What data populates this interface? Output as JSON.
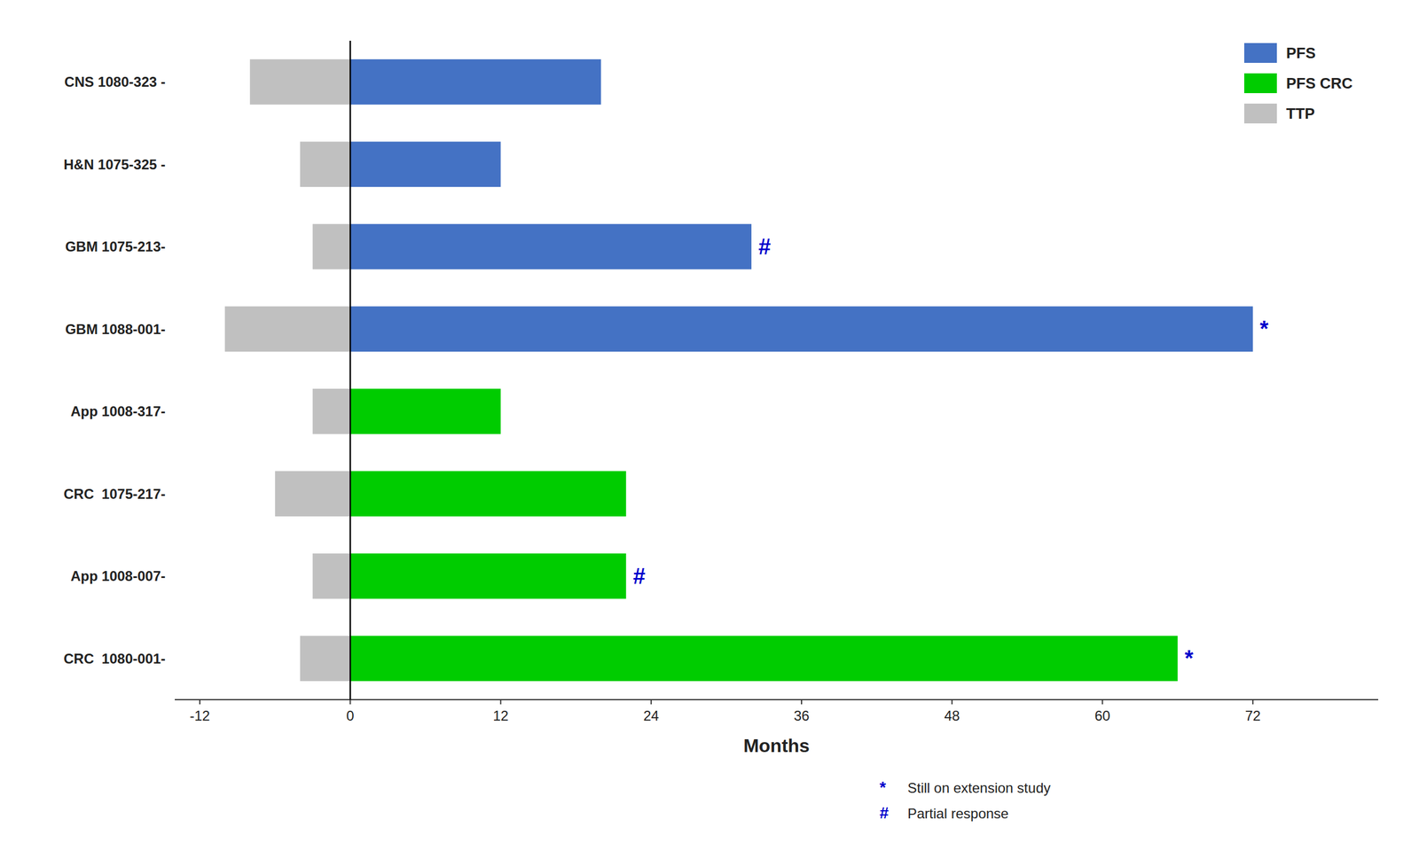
{
  "chart_data": {
    "type": "bar",
    "orientation": "horizontal",
    "xlabel": "Months",
    "categories": [
      "CRC  1080-001-",
      "App 1008-007-",
      "CRC  1075-217-",
      "App 1008-317-",
      "GBM 1088-001-",
      "GBM 1075-213-",
      "H&N 1075-325 -",
      "CNS 1080-323 -"
    ],
    "series": [
      {
        "name": "PFS",
        "color": "#4472c4",
        "values": [
          null,
          null,
          null,
          null,
          72,
          32,
          12,
          20
        ]
      },
      {
        "name": "PFS CRC",
        "color": "#00cc00",
        "values": [
          66,
          22,
          22,
          12,
          null,
          null,
          null,
          null
        ]
      },
      {
        "name": "TTP",
        "color": "#c0c0c0",
        "values": [
          -4,
          -3,
          -6,
          -3,
          -10,
          -3,
          -4,
          -8
        ]
      }
    ],
    "xlim": [
      -14,
      82
    ],
    "xticks": [
      -12,
      0,
      12,
      24,
      36,
      48,
      60,
      72
    ],
    "legend": "upper right",
    "annotations": [
      {
        "text": "*",
        "label": "Still on extension study",
        "color": "#0000cc",
        "categories": [
          "CRC  1080-001-",
          "GBM 1088-001-"
        ]
      },
      {
        "text": "#",
        "label": "Partial response",
        "color": "#0000cc",
        "categories": [
          "App 1008-007-",
          "GBM 1075-213-"
        ]
      }
    ]
  }
}
